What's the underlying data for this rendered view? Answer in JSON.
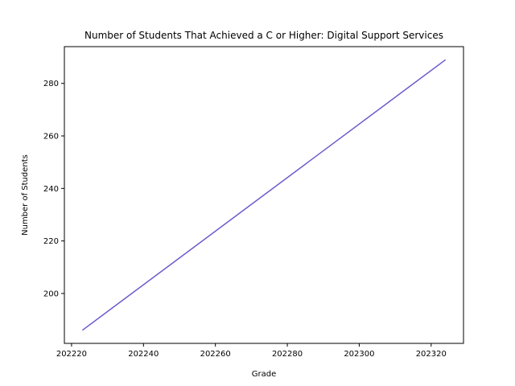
{
  "chart_data": {
    "type": "line",
    "title": "Number of Students That Achieved a C or Higher: Digital Support Services",
    "xlabel": "Grade",
    "ylabel": "Number of Students",
    "series": [
      {
        "x": [
          202223,
          202324
        ],
        "y": [
          186,
          289
        ],
        "color": "#6a5acd"
      }
    ],
    "xlim": [
      202218,
      202329
    ],
    "ylim": [
      181,
      294
    ],
    "xticks": [
      202220,
      202240,
      202260,
      202280,
      202300,
      202320
    ],
    "yticks": [
      200,
      220,
      240,
      260,
      280
    ],
    "grid": false,
    "legend": false
  }
}
